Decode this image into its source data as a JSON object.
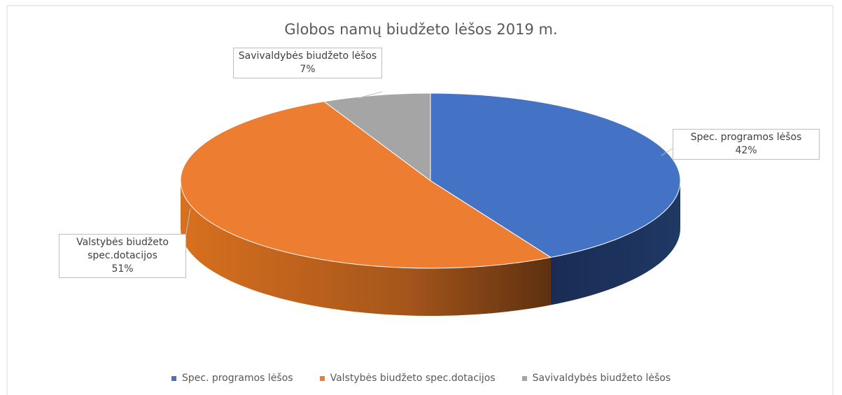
{
  "chart_data": {
    "type": "pie",
    "title": "Globos namų biudžeto lėšos 2019 m.",
    "categories": [
      "Spec. programos lėšos",
      "Valstybės biudžeto spec.dotacijos",
      "Savivaldybės biudžeto lėšos"
    ],
    "values": [
      42,
      51,
      7
    ],
    "value_labels": [
      "42%",
      "51%",
      "7%"
    ],
    "colors": [
      "#4472c4",
      "#ed7d31",
      "#a5a5a5"
    ],
    "legend": "bottom"
  }
}
